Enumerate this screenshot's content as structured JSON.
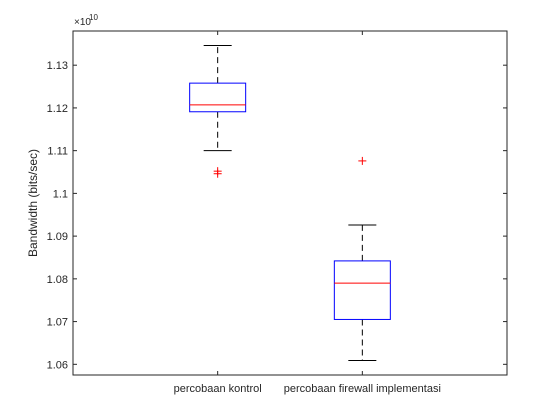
{
  "chart_data": {
    "type": "box",
    "xlabel": "",
    "ylabel": "Bandwidth (bits/sec)",
    "y_exponent_label": "×10",
    "y_exponent": "10",
    "y_scale": 10000000000,
    "ylim": [
      1.0575,
      1.138
    ],
    "y_ticks": [
      1.06,
      1.07,
      1.08,
      1.09,
      1.1,
      1.11,
      1.12,
      1.13
    ],
    "y_tick_labels": [
      "1.06",
      "1.07",
      "1.08",
      "1.09",
      "1.1",
      "1.11",
      "1.12",
      "1.13"
    ],
    "categories": [
      "percobaan kontrol",
      "percobaan firewall implementasi"
    ],
    "grid": false,
    "legend": "none",
    "box_color": "#0000ff",
    "median_color": "#ff0000",
    "whisker_color": "#000000",
    "outlier_color": "#ff0000",
    "boxes": [
      {
        "whisker_low": 1.11,
        "q1": 1.1191,
        "median": 1.1207,
        "q3": 1.1258,
        "whisker_high": 1.1346,
        "outliers": [
          1.1046,
          1.1052
        ]
      },
      {
        "whisker_low": 1.0609,
        "q1": 1.0705,
        "median": 1.079,
        "q3": 1.0842,
        "whisker_high": 1.0926,
        "outliers": [
          1.1076
        ]
      }
    ]
  }
}
